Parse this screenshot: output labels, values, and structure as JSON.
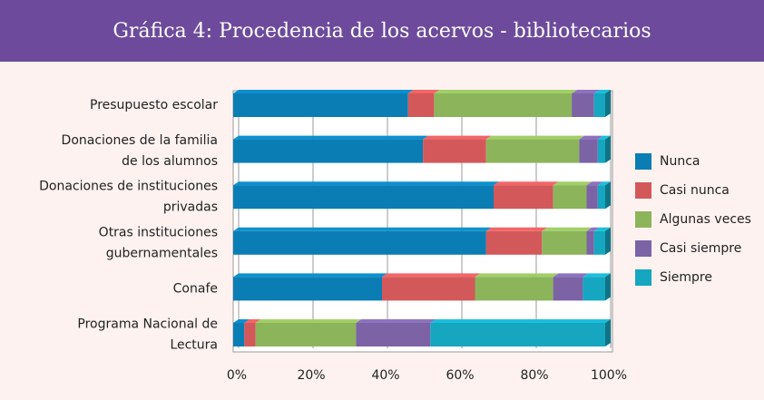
{
  "chart_data": {
    "type": "bar",
    "orientation": "horizontal",
    "stacked": true,
    "title": "Gráfica 4: Procedencia de los acervos - bibliotecarios",
    "categories": [
      [
        "Presupuesto escolar"
      ],
      [
        "Donaciones de la familia",
        "de los alumnos"
      ],
      [
        "Donaciones de instituciones",
        "privadas"
      ],
      [
        "Otras instituciones",
        "gubernamentales"
      ],
      [
        "Conafe"
      ],
      [
        "Programa Nacional de",
        "Lectura"
      ]
    ],
    "series": [
      {
        "name": "Nunca",
        "color": "#0a7db4",
        "values": [
          47,
          51,
          70,
          68,
          40,
          3
        ]
      },
      {
        "name": "Casi nunca",
        "color": "#d3585a",
        "values": [
          7,
          17,
          16,
          15,
          25,
          3
        ]
      },
      {
        "name": "Algunas veces",
        "color": "#8cb45a",
        "values": [
          37,
          25,
          9,
          12,
          21,
          27
        ]
      },
      {
        "name": "Casi siempre",
        "color": "#7b63a6",
        "values": [
          6,
          5,
          3,
          2,
          8,
          20
        ]
      },
      {
        "name": "Siempre",
        "color": "#16a6c0",
        "values": [
          3,
          2,
          2,
          3,
          6,
          47
        ]
      }
    ],
    "xlim": [
      0,
      100
    ],
    "xticks": [
      {
        "value": 0,
        "label": "0%"
      },
      {
        "value": 20,
        "label": "20%"
      },
      {
        "value": 40,
        "label": "40%"
      },
      {
        "value": 60,
        "label": "60%"
      },
      {
        "value": 80,
        "label": "80%"
      },
      {
        "value": 100,
        "label": "100%"
      }
    ],
    "grid": true,
    "legend": "right"
  }
}
